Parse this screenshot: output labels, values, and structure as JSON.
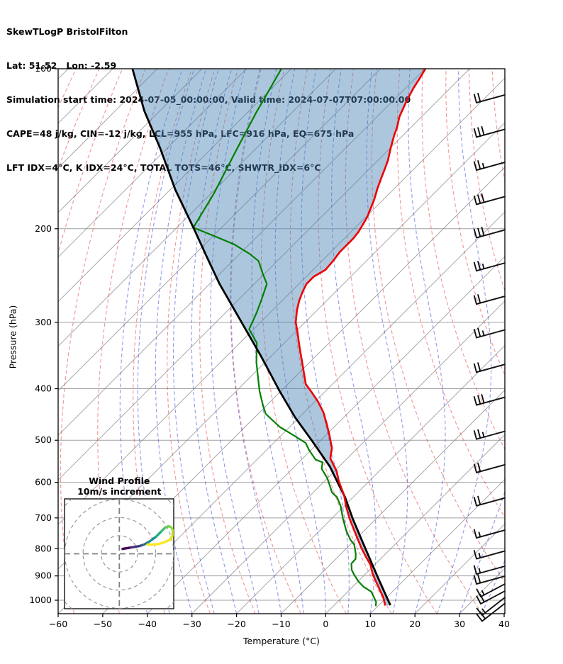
{
  "header": {
    "title": "SkewTLogP BristolFilton",
    "latlon": "Lat: 51.52   Lon: -2.59",
    "sim_time": "Simulation start time: 2024-07-05_00:00:00, Valid time: 2024-07-07T07:00:00.00",
    "cape_line": "CAPE=48 j/kg, CIN=-12 j/kg, LCL=955 hPa, LFC=916 hPa, EQ=675 hPa",
    "indices_line": "LFT IDX=4°C, K IDX=24°C, TOTAL TOTS=46°C, SHWTR_IDX=6°C"
  },
  "axes": {
    "x": {
      "label": "Temperature (°C)",
      "ticks": [
        -60,
        -50,
        -40,
        -30,
        -20,
        -10,
        0,
        10,
        20,
        30,
        40
      ],
      "range": [
        -60,
        40
      ]
    },
    "y": {
      "label": "Pressure (hPa)",
      "ticks": [
        100,
        200,
        300,
        400,
        500,
        600,
        700,
        800,
        900,
        1000
      ],
      "range": [
        100,
        1059
      ],
      "scale": "log"
    }
  },
  "chart_data": {
    "type": "line",
    "subtype": "skew-t-log-p",
    "note": "series points are [pressure_hPa, temperature_C] in the chart's 45-deg skewed coordinate system; x_px = left + (T+60)*6.29 + (bottom - y_px)",
    "title": "SkewTLogP BristolFilton",
    "xlabel": "Temperature (°C)",
    "ylabel": "Pressure (hPa)",
    "series": [
      {
        "name": "envelope_black",
        "points": [
          [
            100,
            -165.6
          ],
          [
            120,
            -153.5
          ],
          [
            141,
            -141.6
          ],
          [
            169,
            -128.8
          ],
          [
            199,
            -116.3
          ],
          [
            226,
            -106.7
          ],
          [
            254,
            -97.8
          ],
          [
            299,
            -84.5
          ],
          [
            346,
            -72.6
          ],
          [
            404,
            -60.3
          ],
          [
            453,
            -50.9
          ],
          [
            501,
            -41.9
          ],
          [
            561,
            -32.0
          ],
          [
            597,
            -27.2
          ],
          [
            640,
            -21.8
          ],
          [
            702,
            -15.3
          ],
          [
            770,
            -8.5
          ],
          [
            836,
            -2.4
          ],
          [
            909,
            3.8
          ],
          [
            978,
            9.3
          ],
          [
            1014,
            12.0
          ],
          [
            1022,
            12.6
          ]
        ]
      },
      {
        "name": "temperature_red",
        "points": [
          [
            100,
            -99.9
          ],
          [
            104,
            -99.1
          ],
          [
            109,
            -98.2
          ],
          [
            115,
            -96.9
          ],
          [
            123,
            -95.0
          ],
          [
            129,
            -93.1
          ],
          [
            133,
            -92.1
          ],
          [
            141,
            -89.9
          ],
          [
            149,
            -87.7
          ],
          [
            154,
            -86.6
          ],
          [
            160,
            -85.4
          ],
          [
            168,
            -83.8
          ],
          [
            176,
            -82.1
          ],
          [
            190,
            -79.7
          ],
          [
            198,
            -78.8
          ],
          [
            203,
            -78.3
          ],
          [
            209,
            -78.0
          ],
          [
            221,
            -78.0
          ],
          [
            230,
            -77.5
          ],
          [
            239,
            -77.2
          ],
          [
            246,
            -78.3
          ],
          [
            254,
            -78.3
          ],
          [
            262,
            -77.5
          ],
          [
            273,
            -76.2
          ],
          [
            285,
            -74.5
          ],
          [
            300,
            -72.1
          ],
          [
            311,
            -69.9
          ],
          [
            325,
            -67.3
          ],
          [
            339,
            -64.8
          ],
          [
            352,
            -62.5
          ],
          [
            392,
            -56.0
          ],
          [
            404,
            -53.3
          ],
          [
            423,
            -49.3
          ],
          [
            443,
            -45.7
          ],
          [
            467,
            -42.2
          ],
          [
            491,
            -39.0
          ],
          [
            517,
            -35.8
          ],
          [
            541,
            -33.8
          ],
          [
            558,
            -31.4
          ],
          [
            572,
            -29.5
          ],
          [
            597,
            -26.8
          ],
          [
            615,
            -24.7
          ],
          [
            634,
            -22.5
          ],
          [
            666,
            -19.5
          ],
          [
            702,
            -16.0
          ],
          [
            731,
            -13.1
          ],
          [
            770,
            -9.3
          ],
          [
            799,
            -6.6
          ],
          [
            826,
            -4.0
          ],
          [
            857,
            -1.0
          ],
          [
            895,
            1.8
          ],
          [
            930,
            4.7
          ],
          [
            964,
            7.4
          ],
          [
            987,
            9.2
          ],
          [
            1023,
            11.5
          ]
        ]
      },
      {
        "name": "dewpoint_green",
        "points": [
          [
            100,
            -132.2
          ],
          [
            121,
            -128.0
          ],
          [
            142,
            -124.1
          ],
          [
            172,
            -119.3
          ],
          [
            199,
            -116.3
          ],
          [
            206,
            -110.1
          ],
          [
            214,
            -103.4
          ],
          [
            223,
            -97.8
          ],
          [
            230,
            -94.2
          ],
          [
            243,
            -90.4
          ],
          [
            254,
            -87.2
          ],
          [
            270,
            -85.1
          ],
          [
            287,
            -83.1
          ],
          [
            309,
            -81.0
          ],
          [
            328,
            -76.2
          ],
          [
            357,
            -71.9
          ],
          [
            404,
            -64.8
          ],
          [
            430,
            -60.8
          ],
          [
            446,
            -58.3
          ],
          [
            472,
            -52.2
          ],
          [
            491,
            -46.8
          ],
          [
            506,
            -42.8
          ],
          [
            522,
            -40.4
          ],
          [
            544,
            -36.8
          ],
          [
            550,
            -34.7
          ],
          [
            566,
            -33.4
          ],
          [
            589,
            -30.1
          ],
          [
            608,
            -27.9
          ],
          [
            627,
            -25.8
          ],
          [
            640,
            -23.6
          ],
          [
            666,
            -20.7
          ],
          [
            702,
            -17.5
          ],
          [
            740,
            -14.0
          ],
          [
            770,
            -11.0
          ],
          [
            786,
            -9.1
          ],
          [
            818,
            -6.7
          ],
          [
            836,
            -5.6
          ],
          [
            853,
            -5.5
          ],
          [
            877,
            -4.0
          ],
          [
            895,
            -2.4
          ],
          [
            922,
            0.1
          ],
          [
            944,
            2.5
          ],
          [
            964,
            5.3
          ],
          [
            987,
            7.1
          ],
          [
            1008,
            8.7
          ],
          [
            1026,
            9.5
          ]
        ]
      }
    ],
    "shading": {
      "between": [
        "envelope_black",
        "temperature_red"
      ],
      "color": "rgba(70,130,180,0.45)"
    },
    "reference_lines": {
      "isotherms_C": {
        "from": -180,
        "to": 40,
        "step": 10
      },
      "dry_adiabats_theta_C": {
        "from": -90,
        "to": 170,
        "step": 10
      },
      "moist_adiabats_startT_C": {
        "from": -40,
        "to": 40,
        "step": 5
      }
    }
  },
  "wind_barbs": [
    {
      "p": 112,
      "full": 2,
      "half": 0,
      "steep": 0
    },
    {
      "p": 130,
      "full": 3,
      "half": 0,
      "steep": 0
    },
    {
      "p": 150,
      "full": 2,
      "half": 1,
      "steep": 0
    },
    {
      "p": 174,
      "full": 3,
      "half": 0,
      "steep": 0
    },
    {
      "p": 201,
      "full": 3,
      "half": 0,
      "steep": 0
    },
    {
      "p": 232,
      "full": 2,
      "half": 1,
      "steep": 0
    },
    {
      "p": 268,
      "full": 2,
      "half": 0,
      "steep": 0
    },
    {
      "p": 310,
      "full": 2,
      "half": 1,
      "steep": 0
    },
    {
      "p": 360,
      "full": 2,
      "half": 0,
      "steep": 0
    },
    {
      "p": 415,
      "full": 3,
      "half": 0,
      "steep": 0
    },
    {
      "p": 481,
      "full": 2,
      "half": 1,
      "steep": 0
    },
    {
      "p": 556,
      "full": 2,
      "half": 0,
      "steep": 0
    },
    {
      "p": 642,
      "full": 2,
      "half": 0,
      "steep": 0
    },
    {
      "p": 738,
      "full": 1,
      "half": 1,
      "steep": 0
    },
    {
      "p": 808,
      "full": 1,
      "half": 1,
      "steep": 0
    },
    {
      "p": 863,
      "full": 1,
      "half": 1,
      "steep": 0
    },
    {
      "p": 901,
      "full": 2,
      "half": 0,
      "steep": 0
    },
    {
      "p": 932,
      "full": 1,
      "half": 1,
      "steep": 1
    },
    {
      "p": 961,
      "full": 2,
      "half": 0,
      "steep": 1
    },
    {
      "p": 988,
      "full": 1,
      "half": 1,
      "steep": 2
    },
    {
      "p": 1014,
      "full": 2,
      "half": 0,
      "steep": 2
    }
  ],
  "hodograph": {
    "title_line1": "Wind Profile",
    "title_line2": "10m/s increment",
    "ring_spacing_ms": 10,
    "rings_ms": [
      10,
      20,
      30,
      40
    ],
    "trace_uv_ms": [
      [
        1.8,
        2.7
      ],
      [
        6.5,
        3.5
      ],
      [
        11.2,
        4.3
      ],
      [
        13.6,
        5.1
      ],
      [
        16.3,
        6.6
      ],
      [
        20.2,
        9.4
      ],
      [
        23.3,
        12.5
      ],
      [
        25.3,
        14.5
      ],
      [
        27.2,
        15.2
      ],
      [
        28.8,
        14.5
      ],
      [
        29.6,
        12.5
      ],
      [
        29.2,
        9.8
      ],
      [
        28.0,
        7.8
      ],
      [
        25.3,
        6.6
      ],
      [
        22.1,
        5.5
      ],
      [
        19.0,
        5.1
      ],
      [
        15.5,
        5.1
      ]
    ],
    "trace_colors": [
      "#440154",
      "#46327e",
      "#3b528b",
      "#2c728e",
      "#21918c",
      "#27ad81",
      "#42be71",
      "#5ec962",
      "#7ad151",
      "#9bd93c",
      "#bddf26",
      "#dfe318",
      "#f4e61e",
      "#fde725",
      "#fde725",
      "#fde725"
    ]
  },
  "colors": {
    "temperature": "#ee0000",
    "envelope": "#000000",
    "dewpoint": "#008000",
    "isotherm": "rgba(120,120,120,0.65)",
    "pressure_grid": "rgba(145,145,145,0.85)",
    "dry_adiabat": "rgba(230,60,60,0.55)",
    "moist_adiabat": "rgba(70,85,220,0.60)",
    "shading": "rgba(70,130,180,0.45)",
    "barb": "#111111",
    "hodo_ring": "#999999",
    "hodo_cross": "#808080"
  }
}
